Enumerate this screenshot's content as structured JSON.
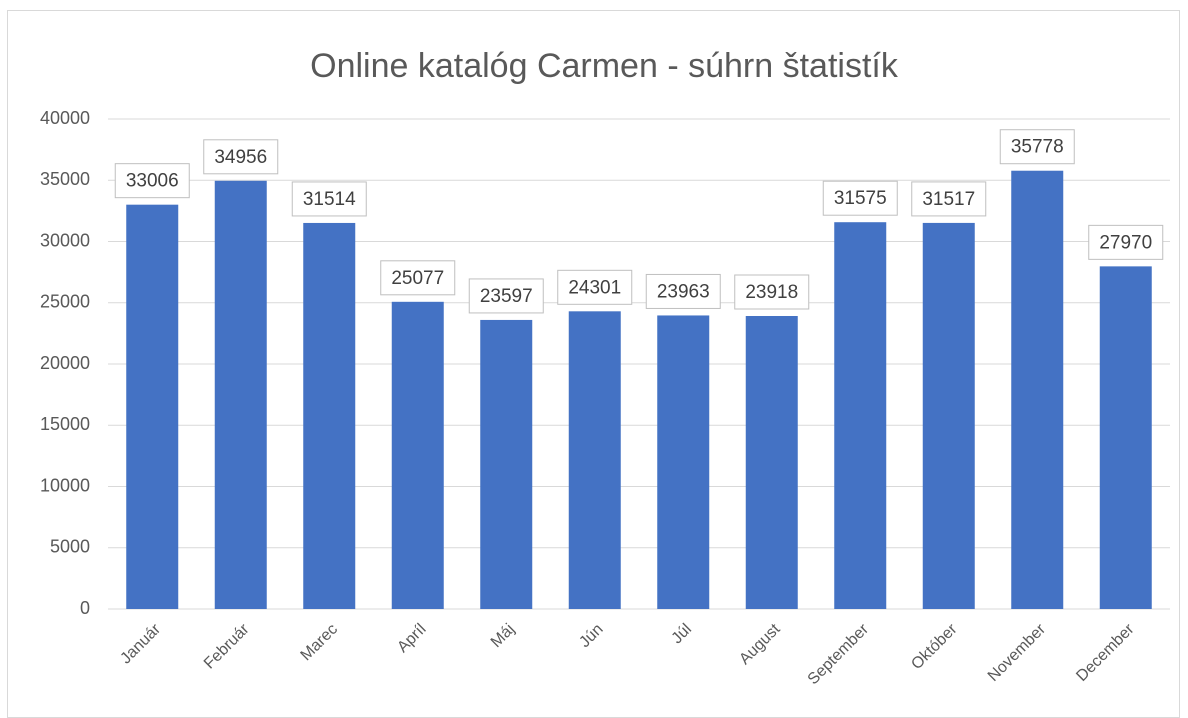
{
  "chart_data": {
    "type": "bar",
    "title": "Online katalóg Carmen - súhrn štatistík",
    "categories": [
      "Január",
      "Február",
      "Marec",
      "Apríl",
      "Máj",
      "Jún",
      "Júl",
      "August",
      "September",
      "Október",
      "November",
      "December"
    ],
    "values": [
      33006,
      34956,
      31514,
      25077,
      23597,
      24301,
      23963,
      23918,
      31575,
      31517,
      35778,
      27970
    ],
    "color": "#4472c4",
    "ylim": [
      0,
      40000
    ],
    "yticks": [
      0,
      5000,
      10000,
      15000,
      20000,
      25000,
      30000,
      35000,
      40000
    ],
    "grid": true
  }
}
